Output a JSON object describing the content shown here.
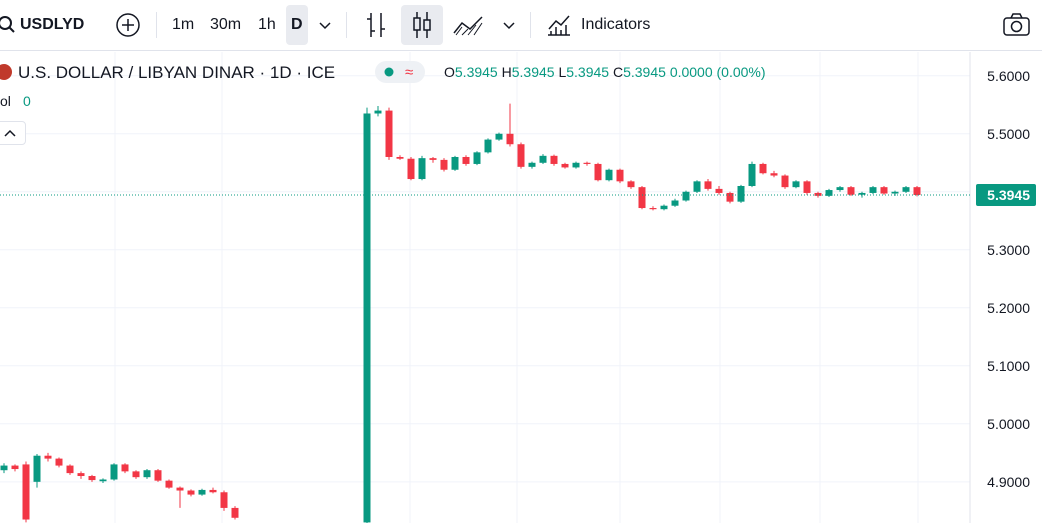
{
  "toolbar": {
    "symbol": "USDLYD",
    "intervals": [
      "1m",
      "30m",
      "1h",
      "D"
    ],
    "indicators": "Indicators"
  },
  "legend": {
    "title": "U.S. DOLLAR / LIBYAN DINAR · 1D · ICE",
    "open": {
      "label": "O",
      "value": "5.3945"
    },
    "high": {
      "label": "H",
      "value": "5.3945"
    },
    "low": {
      "label": "L",
      "value": "5.3945"
    },
    "close": {
      "label": "C",
      "value": "5.3945"
    },
    "change": "0.0000 (0.00%)",
    "volume": {
      "label": "ol",
      "value": "0"
    }
  },
  "chart_data": {
    "type": "candlestick",
    "up_color": "#089981",
    "down_color": "#f23645",
    "ylim": [
      4.829,
      5.641
    ],
    "yticks": [
      {
        "value": 4.9,
        "label": "4.9000"
      },
      {
        "value": 5.0,
        "label": "5.0000"
      },
      {
        "value": 5.1,
        "label": "5.1000"
      },
      {
        "value": 5.2,
        "label": "5.2000"
      },
      {
        "value": 5.3,
        "label": "5.3000"
      },
      {
        "value": 5.4,
        "label": "5.4000"
      },
      {
        "value": 5.5,
        "label": "5.5000"
      },
      {
        "value": 5.6,
        "label": "5.6000"
      }
    ],
    "last_value": 5.3945,
    "open": [
      4.92,
      4.928,
      4.93,
      4.9,
      4.945,
      4.94,
      4.928,
      4.915,
      4.91,
      4.901,
      4.904,
      4.93,
      4.918,
      4.908,
      4.92,
      4.902,
      4.89,
      4.885,
      4.878,
      4.886,
      4.882,
      4.855,
      null,
      null,
      null,
      null,
      null,
      null,
      null,
      null,
      null,
      null,
      null,
      4.83,
      5.535,
      5.54,
      5.46,
      5.457,
      5.422,
      5.458,
      5.455,
      5.438,
      5.46,
      5.448,
      5.468,
      5.49,
      5.5,
      5.482,
      5.443,
      5.45,
      5.462,
      5.448,
      5.442,
      5.45,
      5.448,
      5.42,
      5.438,
      5.418,
      5.408,
      5.372,
      5.37,
      5.376,
      5.385,
      5.4,
      5.418,
      5.405,
      5.398,
      5.383,
      5.41,
      5.448,
      5.432,
      5.428,
      5.408,
      5.418,
      5.398,
      5.393,
      5.403,
      5.408,
      5.395,
      5.398,
      5.408,
      5.397,
      5.4,
      5.408
    ],
    "high": [
      4.932,
      4.93,
      4.935,
      4.948,
      4.95,
      4.942,
      4.93,
      4.918,
      4.912,
      4.906,
      4.932,
      4.932,
      4.92,
      4.922,
      4.922,
      4.904,
      4.892,
      4.887,
      4.888,
      4.89,
      4.885,
      4.858,
      null,
      null,
      null,
      null,
      null,
      null,
      null,
      null,
      null,
      null,
      null,
      5.545,
      5.548,
      5.545,
      5.463,
      5.46,
      5.462,
      5.46,
      5.458,
      5.462,
      5.463,
      5.47,
      5.492,
      5.502,
      5.552,
      5.485,
      5.452,
      5.465,
      5.464,
      5.45,
      5.452,
      5.452,
      5.45,
      5.44,
      5.44,
      5.42,
      5.41,
      5.375,
      5.378,
      5.388,
      5.402,
      5.42,
      5.422,
      5.41,
      5.4,
      5.412,
      5.452,
      5.45,
      5.436,
      5.43,
      5.42,
      5.42,
      5.4,
      5.405,
      5.41,
      5.41,
      5.4,
      5.41,
      5.41,
      5.402,
      5.41,
      5.41
    ],
    "low": [
      4.915,
      4.918,
      4.83,
      4.89,
      4.935,
      4.925,
      4.912,
      4.905,
      4.9,
      4.898,
      4.902,
      4.915,
      4.905,
      4.905,
      4.9,
      4.888,
      4.855,
      4.875,
      4.876,
      4.88,
      4.85,
      4.835,
      null,
      null,
      null,
      null,
      null,
      null,
      null,
      null,
      null,
      null,
      null,
      4.829,
      5.53,
      5.455,
      5.455,
      5.42,
      5.42,
      5.45,
      5.435,
      5.436,
      5.445,
      5.446,
      5.466,
      5.488,
      5.478,
      5.44,
      5.44,
      5.448,
      5.445,
      5.44,
      5.44,
      5.445,
      5.418,
      5.418,
      5.415,
      5.405,
      5.37,
      5.368,
      5.368,
      5.374,
      5.383,
      5.398,
      5.402,
      5.395,
      5.38,
      5.381,
      5.408,
      5.43,
      5.425,
      5.405,
      5.406,
      5.395,
      5.39,
      5.391,
      5.4,
      5.393,
      5.39,
      5.396,
      5.395,
      5.393,
      5.398,
      5.392
    ],
    "close": [
      4.928,
      4.922,
      4.835,
      4.945,
      4.94,
      4.928,
      4.915,
      4.91,
      4.903,
      4.904,
      4.93,
      4.918,
      4.908,
      4.92,
      4.902,
      4.89,
      4.885,
      4.878,
      4.886,
      4.882,
      4.855,
      4.838,
      null,
      null,
      null,
      null,
      null,
      null,
      null,
      null,
      null,
      null,
      null,
      5.535,
      5.54,
      5.46,
      5.457,
      5.422,
      5.458,
      5.455,
      5.438,
      5.46,
      5.448,
      5.468,
      5.49,
      5.5,
      5.482,
      5.443,
      5.45,
      5.462,
      5.448,
      5.442,
      5.45,
      5.448,
      5.42,
      5.438,
      5.418,
      5.408,
      5.372,
      5.37,
      5.376,
      5.385,
      5.4,
      5.418,
      5.405,
      5.398,
      5.383,
      5.41,
      5.448,
      5.432,
      5.428,
      5.408,
      5.418,
      5.398,
      5.393,
      5.403,
      5.408,
      5.395,
      5.398,
      5.408,
      5.397,
      5.4,
      5.408,
      5.3945
    ]
  }
}
